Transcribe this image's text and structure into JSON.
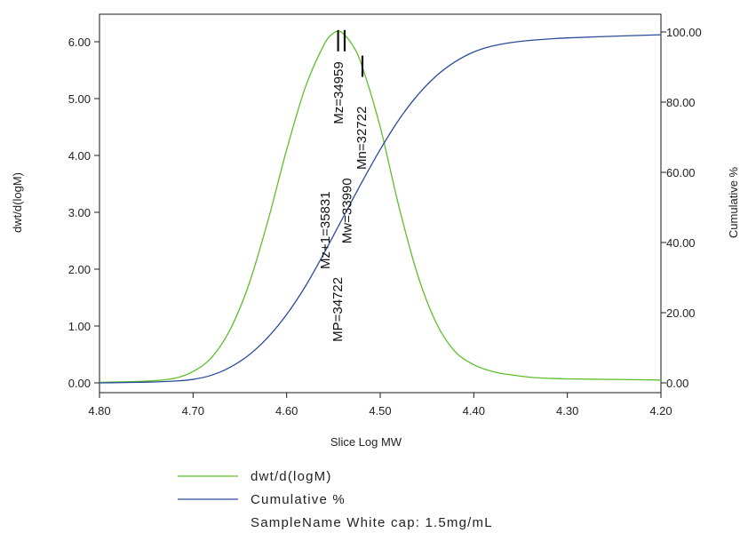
{
  "chart_data": {
    "type": "line",
    "xlabel": "Slice Log MW",
    "ylabel_left": "dwt/d(logM)",
    "ylabel_right": "Cumulative %",
    "x_reversed": true,
    "xlim": [
      4.8,
      4.2
    ],
    "ylim_left": [
      0,
      6.5
    ],
    "ylim_right": [
      0,
      100
    ],
    "x_ticks": [
      "4.80",
      "4.70",
      "4.60",
      "4.50",
      "4.40",
      "4.30",
      "4.20"
    ],
    "y_left_ticks": [
      "0.00",
      "1.00",
      "2.00",
      "3.00",
      "4.00",
      "5.00",
      "6.00"
    ],
    "y_right_ticks": [
      "0.00",
      "20.00",
      "40.00",
      "60.00",
      "80.00",
      "100.00"
    ],
    "series": [
      {
        "name": "dwt/d(logM)",
        "axis": "left",
        "color": "#5cbf2a",
        "x": [
          4.8,
          4.75,
          4.72,
          4.7,
          4.68,
          4.66,
          4.64,
          4.62,
          4.6,
          4.58,
          4.56,
          4.55,
          4.545,
          4.54,
          4.53,
          4.52,
          4.5,
          4.48,
          4.46,
          4.44,
          4.42,
          4.4,
          4.38,
          4.36,
          4.34,
          4.32,
          4.3,
          4.25,
          4.2
        ],
        "y": [
          0.01,
          0.03,
          0.08,
          0.2,
          0.45,
          0.95,
          1.75,
          2.85,
          4.1,
          5.2,
          5.95,
          6.15,
          6.18,
          6.15,
          5.95,
          5.6,
          4.5,
          3.1,
          1.9,
          1.05,
          0.55,
          0.32,
          0.2,
          0.14,
          0.1,
          0.08,
          0.07,
          0.06,
          0.05
        ]
      },
      {
        "name": "Cumulative %",
        "axis": "right",
        "color": "#2a4c9a",
        "x": [
          4.8,
          4.75,
          4.72,
          4.7,
          4.68,
          4.66,
          4.64,
          4.62,
          4.6,
          4.58,
          4.56,
          4.54,
          4.52,
          4.5,
          4.48,
          4.46,
          4.44,
          4.42,
          4.4,
          4.38,
          4.36,
          4.34,
          4.32,
          4.3,
          4.25,
          4.2
        ],
        "y": [
          0.0,
          0.2,
          0.5,
          1.0,
          2.2,
          4.5,
          8.0,
          13.0,
          19.5,
          27.5,
          37.0,
          47.0,
          57.0,
          66.5,
          75.0,
          82.0,
          87.5,
          91.5,
          94.3,
          96.0,
          97.0,
          97.6,
          98.0,
          98.3,
          98.8,
          99.2
        ]
      }
    ],
    "annotations": [
      {
        "label": "Mz+1=35831",
        "x": 4.554,
        "y": 2.0
      },
      {
        "label": "MP=34722",
        "x": 4.541,
        "y": 0.72
      },
      {
        "label": "Mw=33990",
        "x": 4.531,
        "y": 2.45
      },
      {
        "label": "Mz=34959",
        "x": 4.54,
        "y": 4.55
      },
      {
        "label": "Mn=32722",
        "x": 4.515,
        "y": 3.75
      }
    ],
    "annotation_ticks": [
      {
        "x": 4.545,
        "y": 6.05
      },
      {
        "x": 4.538,
        "y": 6.05
      },
      {
        "x": 4.519,
        "y": 5.6
      }
    ],
    "legend_position": "bottom",
    "grid": false
  },
  "legend": {
    "items": [
      {
        "label": "dwt/d(logM)",
        "color": "#5cbf2a"
      },
      {
        "label": "Cumulative %",
        "color": "#2a4c9a"
      }
    ],
    "sample_name": "SampleName White cap: 1.5mg/mL"
  }
}
